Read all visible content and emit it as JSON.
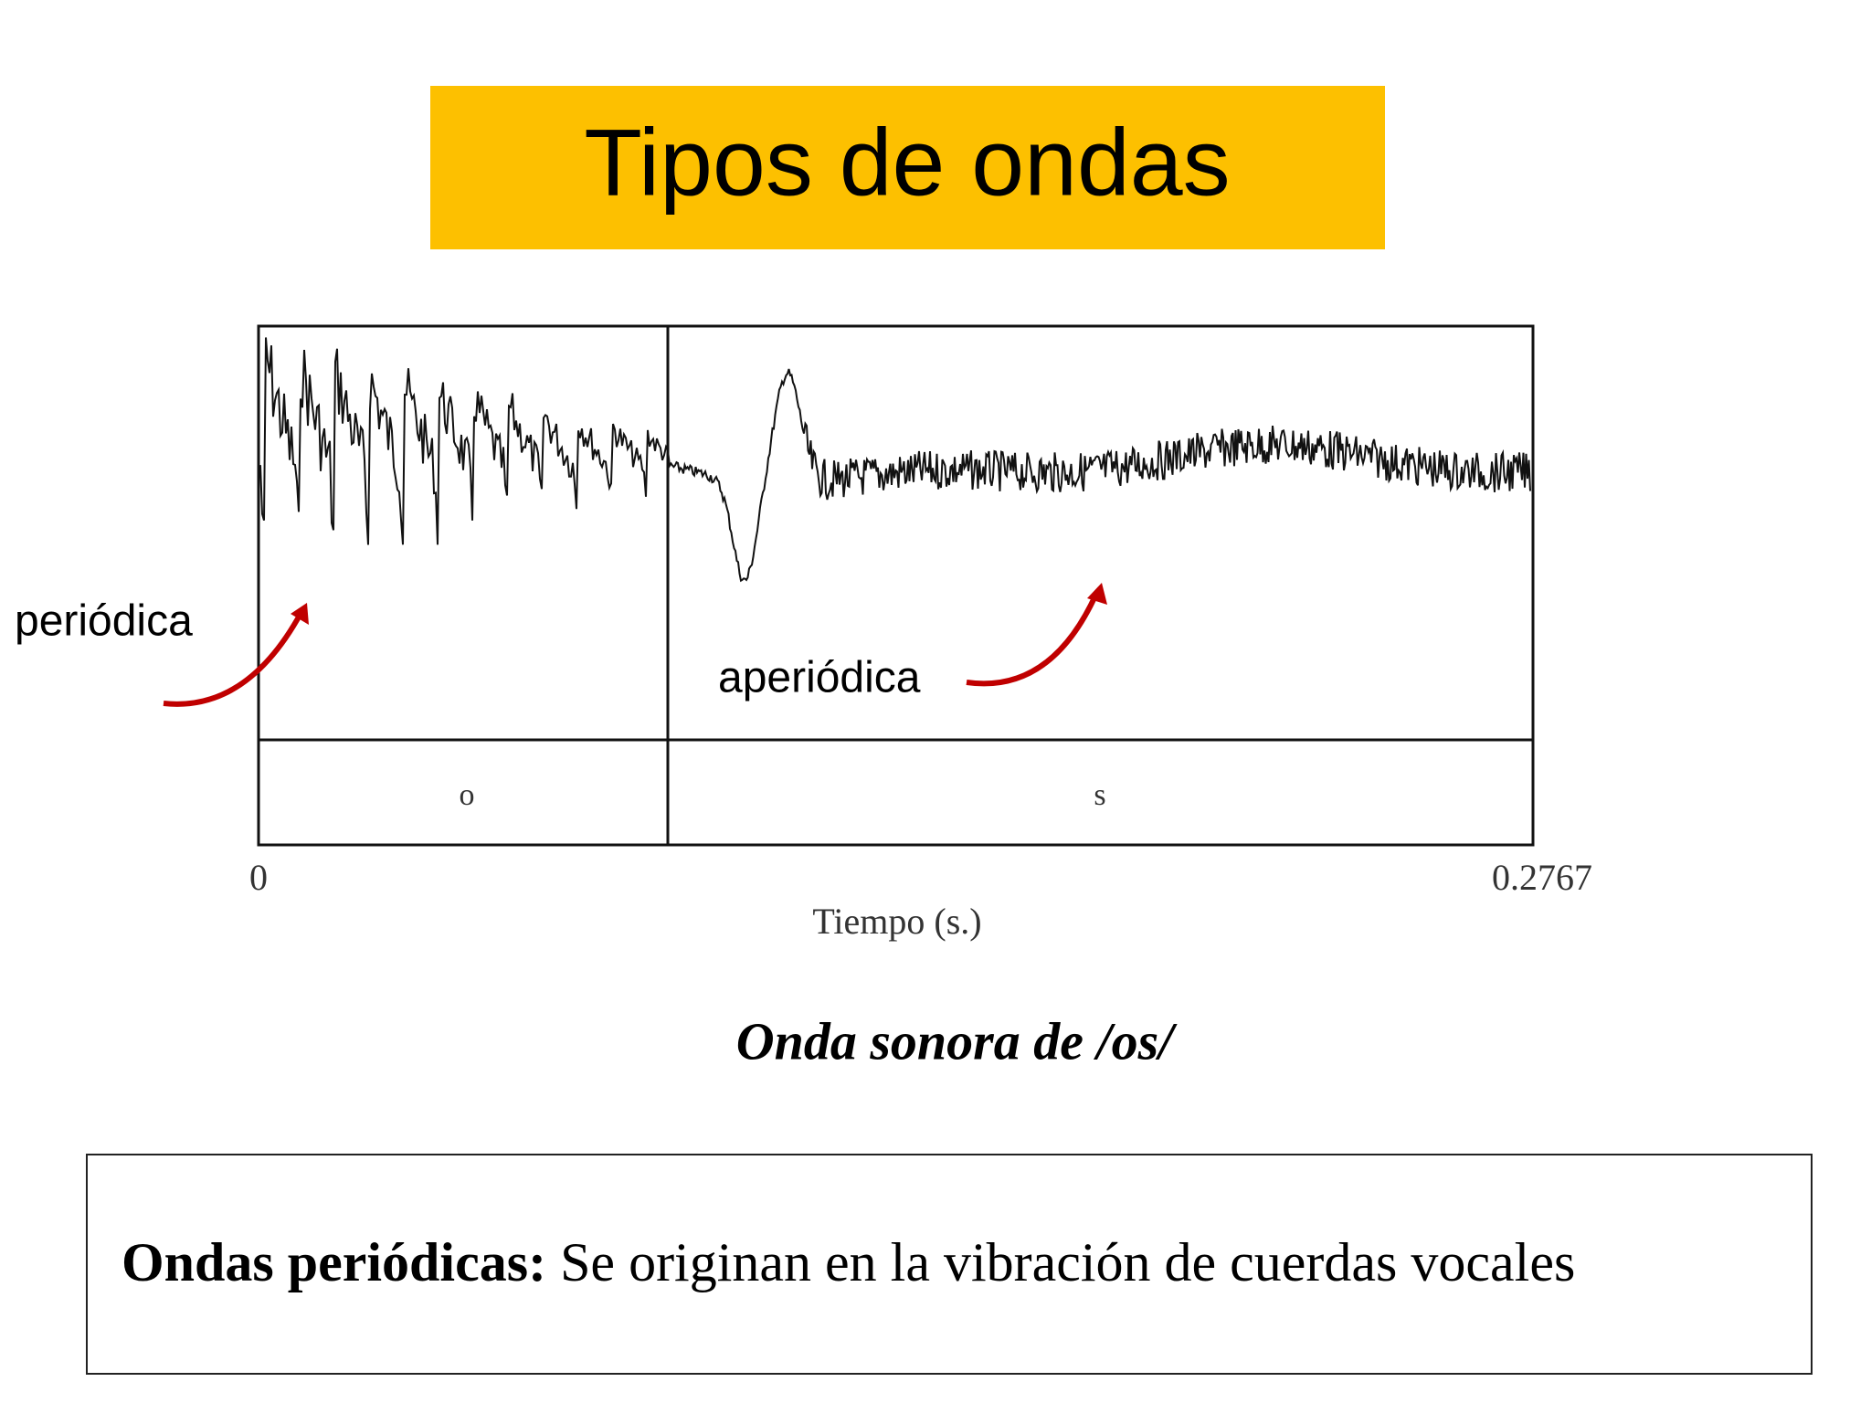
{
  "title": "Tipos de ondas",
  "figure": {
    "annotations": [
      "periódica",
      "aperiódica"
    ],
    "segments": [
      "o",
      "s"
    ],
    "axis": {
      "start": "0",
      "end": "0.2767",
      "label": "Tiempo (s.)"
    },
    "caption": "Onda sonora de /os/"
  },
  "note": {
    "term": "Ondas periódicas:",
    "text": " Se originan en la vibración de cuerdas vocales"
  }
}
